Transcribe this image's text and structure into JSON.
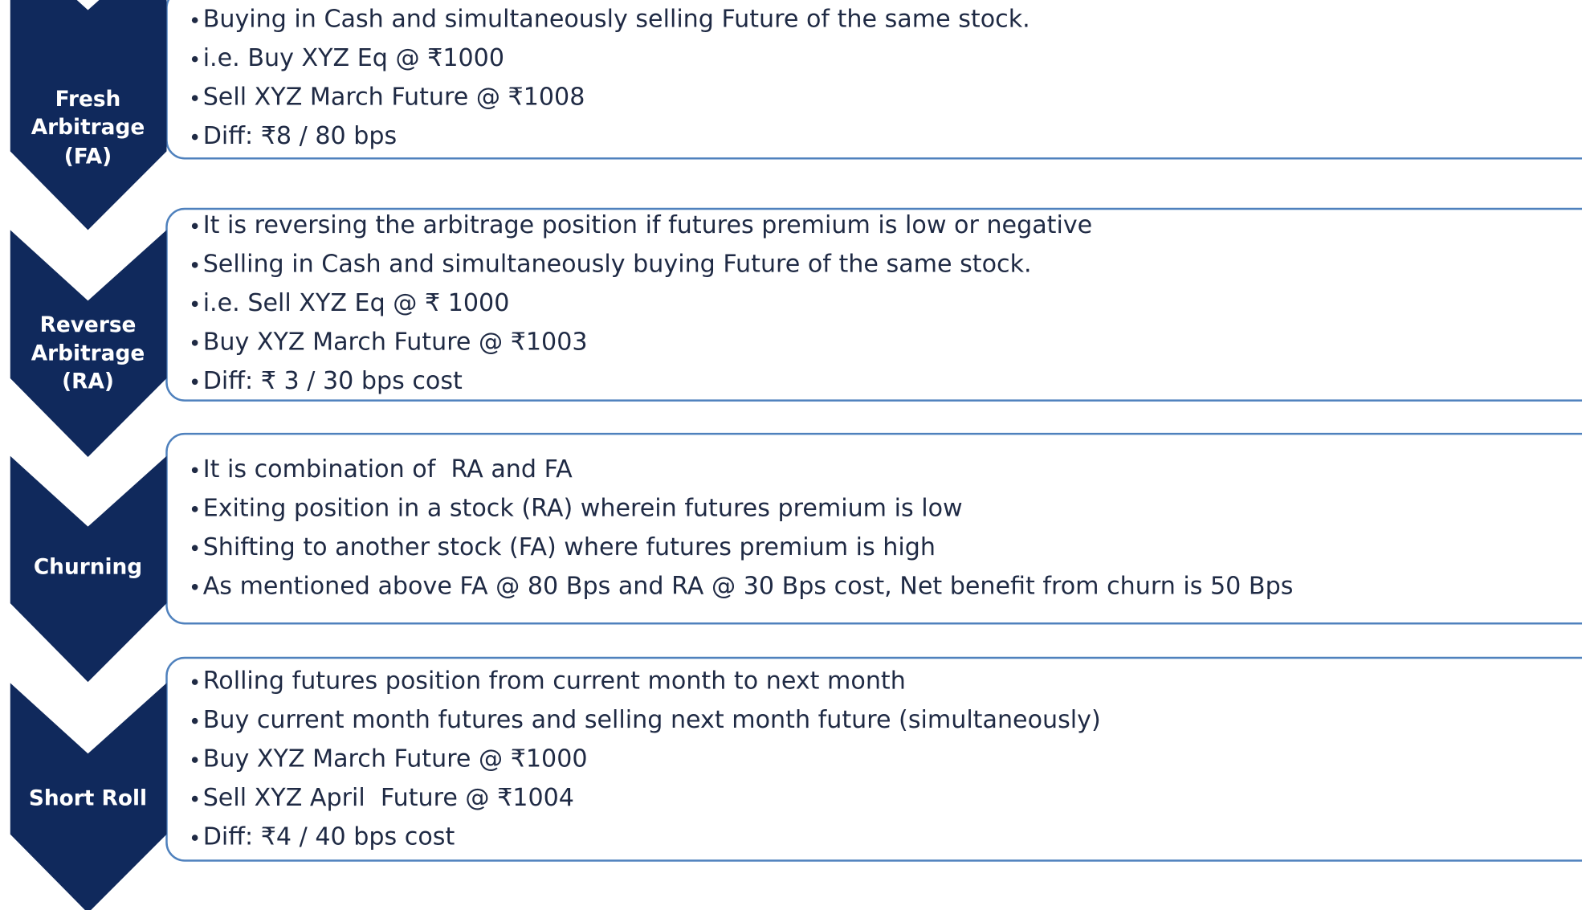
{
  "rows": [
    {
      "label": [
        "Fresh",
        "Arbitrage",
        "(FA)"
      ],
      "bullets": [
        "Buying in Cash and simultaneously selling Future of the same stock.",
        "i.e. Buy XYZ Eq @ ₹1000",
        "Sell XYZ March Future @ ₹1008",
        "Diff: ₹8 / 80 bps"
      ]
    },
    {
      "label": [
        "Reverse",
        "Arbitrage",
        "(RA)"
      ],
      "bullets": [
        "It is reversing the arbitrage position if futures premium is low or negative",
        "Selling in Cash and simultaneously buying Future of the same stock.",
        "i.e. Sell XYZ Eq @ ₹ 1000",
        "Buy XYZ March Future @ ₹1003",
        "Diff: ₹ 3 / 30 bps cost"
      ]
    },
    {
      "label": [
        "Churning"
      ],
      "bullets": [
        "It is combination of  RA and FA",
        "Exiting position in a stock (RA) wherein futures premium is low",
        "Shifting to another stock (FA) where futures premium is high",
        "As mentioned above FA @ 80 Bps and RA @ 30 Bps cost, Net benefit from churn is 50 Bps"
      ]
    },
    {
      "label": [
        "Short Roll"
      ],
      "bullets": [
        "Rolling futures position from current month to next month",
        "Buy current month futures and selling next month future (simultaneously)",
        "Buy XYZ March Future @ ₹1000",
        "Sell XYZ April  Future @ ₹1004",
        "Diff: ₹4 / 40 bps cost"
      ]
    }
  ]
}
